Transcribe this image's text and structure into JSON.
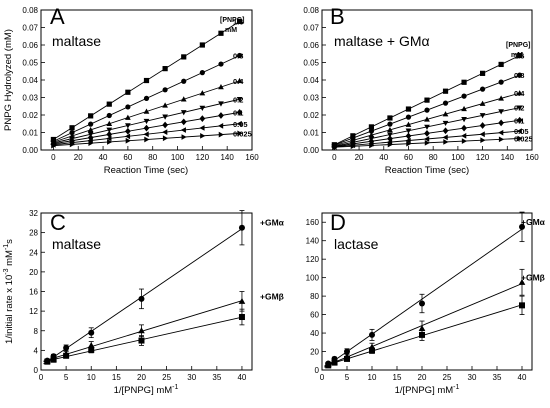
{
  "chart_data": [
    {
      "panel": "A",
      "type": "scatter",
      "name": "maltase",
      "xlabel": "Reaction Time (sec)",
      "ylabel": "PNPG Hydrolyzed (mM)",
      "xlim": [
        -10,
        160
      ],
      "ylim": [
        0,
        0.08
      ],
      "xticks": [
        "0",
        "20",
        "40",
        "60",
        "80",
        "100",
        "120",
        "140",
        "160"
      ],
      "yticks": [
        "0.00",
        "0.01",
        "0.02",
        "0.03",
        "0.04",
        "0.05",
        "0.06",
        "0.07",
        "0.08"
      ],
      "legend_header": [
        "[PNPG]",
        "mM"
      ],
      "x": [
        0,
        15,
        30,
        45,
        60,
        75,
        90,
        105,
        120,
        135,
        150
      ],
      "series": [
        {
          "name": "1.6",
          "marker": "square",
          "values": [
            0.006,
            0.0127,
            0.0195,
            0.0262,
            0.033,
            0.0397,
            0.0465,
            0.0532,
            0.06,
            0.0667,
            0.0735
          ]
        },
        {
          "name": "0.8",
          "marker": "circle",
          "values": [
            0.005,
            0.0099,
            0.0148,
            0.0197,
            0.0246,
            0.0295,
            0.0344,
            0.0393,
            0.0442,
            0.0491,
            0.054
          ]
        },
        {
          "name": "0.4",
          "marker": "triangle-up",
          "values": [
            0.0045,
            0.008,
            0.0115,
            0.015,
            0.0185,
            0.022,
            0.0255,
            0.029,
            0.0325,
            0.036,
            0.0395
          ]
        },
        {
          "name": "0.2",
          "marker": "triangle-down",
          "values": [
            0.004,
            0.0065,
            0.009,
            0.0115,
            0.014,
            0.0165,
            0.019,
            0.0215,
            0.024,
            0.0265,
            0.029
          ]
        },
        {
          "name": "0.1",
          "marker": "diamond",
          "values": [
            0.0035,
            0.0053,
            0.0071,
            0.0089,
            0.0107,
            0.0125,
            0.0143,
            0.0161,
            0.0179,
            0.0197,
            0.0215
          ]
        },
        {
          "name": "0.05",
          "marker": "triangle-left",
          "values": [
            0.003,
            0.0042,
            0.0054,
            0.0066,
            0.0078,
            0.009,
            0.0102,
            0.0114,
            0.0126,
            0.0138,
            0.015
          ]
        },
        {
          "name": "0.025",
          "marker": "triangle-right",
          "values": [
            0.0025,
            0.0032,
            0.0039,
            0.0046,
            0.0053,
            0.006,
            0.0067,
            0.0074,
            0.0081,
            0.0088,
            0.0095
          ]
        }
      ]
    },
    {
      "panel": "B",
      "type": "scatter",
      "name": "maltase + GMα",
      "xlabel": "Reaction Time (sec)",
      "ylabel": "",
      "xlim": [
        -10,
        160
      ],
      "ylim": [
        0,
        0.08
      ],
      "xticks": [
        "0",
        "20",
        "40",
        "60",
        "80",
        "100",
        "120",
        "140",
        "160"
      ],
      "yticks": [
        "0.00",
        "0.01",
        "0.02",
        "0.03",
        "0.04",
        "0.05",
        "0.06",
        "0.07",
        "0.08"
      ],
      "legend_header": [
        "[PNPG]",
        "mM"
      ],
      "x": [
        0,
        15,
        30,
        45,
        60,
        75,
        90,
        105,
        120,
        135,
        150
      ],
      "series": [
        {
          "name": "1.6",
          "marker": "square",
          "values": [
            0.003,
            0.0081,
            0.0132,
            0.0183,
            0.0234,
            0.0285,
            0.0336,
            0.0387,
            0.0438,
            0.0489,
            0.054
          ]
        },
        {
          "name": "0.8",
          "marker": "circle",
          "values": [
            0.0028,
            0.0068,
            0.0108,
            0.0148,
            0.0188,
            0.0228,
            0.0268,
            0.0308,
            0.0348,
            0.0388,
            0.0428
          ]
        },
        {
          "name": "0.4",
          "marker": "triangle-up",
          "values": [
            0.0025,
            0.0055,
            0.0085,
            0.0115,
            0.0145,
            0.0175,
            0.0205,
            0.0235,
            0.0265,
            0.0295,
            0.0325
          ]
        },
        {
          "name": "0.2",
          "marker": "triangle-down",
          "values": [
            0.0022,
            0.0044,
            0.0066,
            0.0088,
            0.011,
            0.0132,
            0.0154,
            0.0176,
            0.0198,
            0.022,
            0.0242
          ]
        },
        {
          "name": "0.1",
          "marker": "diamond",
          "values": [
            0.002,
            0.0035,
            0.005,
            0.0065,
            0.008,
            0.0095,
            0.011,
            0.0125,
            0.014,
            0.0155,
            0.017
          ]
        },
        {
          "name": "0.05",
          "marker": "triangle-left",
          "values": [
            0.0018,
            0.0027,
            0.0036,
            0.0045,
            0.0054,
            0.0063,
            0.0072,
            0.0081,
            0.009,
            0.0099,
            0.0108
          ]
        },
        {
          "name": "0.025",
          "marker": "triangle-right",
          "values": [
            0.0016,
            0.0021,
            0.0026,
            0.0031,
            0.0036,
            0.0041,
            0.0046,
            0.0051,
            0.0056,
            0.0061,
            0.0066
          ]
        }
      ]
    },
    {
      "panel": "C",
      "type": "scatter",
      "name": "maltase",
      "xlabel": "1/[PNPG]  mM",
      "xlabel_sup": "-1",
      "ylabel": "1/initial rate x 10",
      "ylabel_sup1": "-3",
      "ylabel_mid": "  mM",
      "ylabel_sup2": "-1",
      "ylabel_end": "s",
      "xlim": [
        0,
        42
      ],
      "ylim": [
        0,
        32
      ],
      "xticks": [
        "0",
        "5",
        "10",
        "15",
        "20",
        "25",
        "30",
        "35",
        "40"
      ],
      "yticks": [
        "0",
        "4",
        "8",
        "12",
        "16",
        "20",
        "24",
        "28",
        "32"
      ],
      "x": [
        1.25,
        2.5,
        5,
        10,
        20,
        40
      ],
      "series": [
        {
          "name": "+GMα",
          "marker": "circle",
          "values": [
            1.9,
            2.8,
            4.5,
            7.6,
            14.5,
            29.0
          ],
          "errors": [
            0.3,
            0.4,
            0.6,
            1.0,
            2.0,
            3.5
          ]
        },
        {
          "name": "+GMβ",
          "marker": "triangle-up",
          "values": [
            1.8,
            2.3,
            3.3,
            5.0,
            8.0,
            14.0
          ],
          "errors": [
            0.3,
            0.3,
            0.5,
            0.8,
            1.2,
            2.0
          ]
        },
        {
          "name": "",
          "marker": "square",
          "values": [
            1.7,
            2.1,
            2.9,
            4.1,
            6.0,
            10.8
          ],
          "errors": [
            0.2,
            0.3,
            0.4,
            0.6,
            1.0,
            1.6
          ]
        }
      ]
    },
    {
      "panel": "D",
      "type": "scatter",
      "name": "lactase",
      "xlabel": "1/[PNPG]  mM",
      "xlabel_sup": "-1",
      "ylabel": "",
      "xlim": [
        0,
        42
      ],
      "ylim": [
        0,
        170
      ],
      "xticks": [
        "0",
        "5",
        "10",
        "15",
        "20",
        "25",
        "30",
        "35",
        "40"
      ],
      "yticks": [
        "0",
        "20",
        "40",
        "60",
        "80",
        "100",
        "120",
        "140",
        "160"
      ],
      "x": [
        1.25,
        2.5,
        5,
        10,
        20,
        40
      ],
      "series": [
        {
          "name": "+GMα",
          "marker": "circle",
          "values": [
            7,
            12,
            20,
            38,
            72,
            155
          ],
          "errors": [
            1.5,
            2,
            3,
            6,
            10,
            16
          ]
        },
        {
          "name": "+GMβ",
          "marker": "triangle-up",
          "values": [
            6,
            9,
            15,
            25,
            45,
            95
          ],
          "errors": [
            1,
            2,
            2.5,
            4,
            8,
            14
          ]
        },
        {
          "name": "",
          "marker": "square",
          "values": [
            5,
            8,
            12,
            21,
            38,
            70
          ],
          "errors": [
            1,
            1.5,
            2,
            3,
            6,
            10
          ]
        }
      ]
    }
  ]
}
